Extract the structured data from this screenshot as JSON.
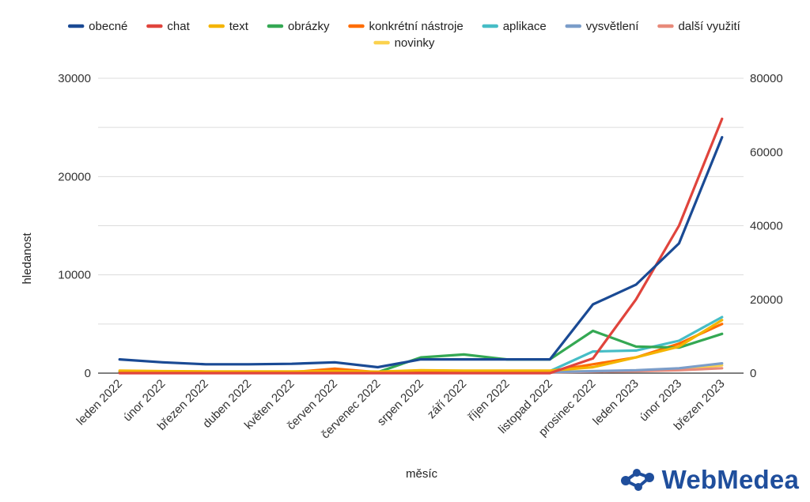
{
  "chart_data": {
    "type": "line",
    "title": "",
    "xlabel": "měsíc",
    "ylabel": "hledanost",
    "categories": [
      "leden 2022",
      "únor 2022",
      "březen 2022",
      "duben 2022",
      "květen 2022",
      "červen 2022",
      "červenec 2022",
      "srpen 2022",
      "září 2022",
      "říjen 2022",
      "listopad 2022",
      "prosinec 2022",
      "leden 2023",
      "únor 2023",
      "březen 2023"
    ],
    "ylim": [
      0,
      30000
    ],
    "yticks": [
      0,
      10000,
      20000,
      30000
    ],
    "y2lim": [
      0,
      80000
    ],
    "y2ticks": [
      0,
      20000,
      40000,
      60000,
      80000
    ],
    "legend_position": "top",
    "grid": true,
    "series": [
      {
        "name": "obecné",
        "color": "#1a4a94",
        "axis": "left",
        "values": [
          1400,
          1100,
          900,
          900,
          950,
          1100,
          600,
          1400,
          1400,
          1400,
          1400,
          7000,
          9000,
          13200,
          24000
        ]
      },
      {
        "name": "chat",
        "color": "#e0443c",
        "axis": "right",
        "values": [
          0,
          0,
          0,
          0,
          0,
          0,
          0,
          0,
          0,
          0,
          0,
          4000,
          20000,
          40000,
          69000
        ]
      },
      {
        "name": "text",
        "color": "#f4b400",
        "axis": "left",
        "values": [
          250,
          200,
          180,
          180,
          180,
          200,
          150,
          300,
          250,
          250,
          250,
          600,
          1600,
          2700,
          5400
        ]
      },
      {
        "name": "obrázky",
        "color": "#34a853",
        "axis": "left",
        "values": [
          100,
          100,
          100,
          100,
          100,
          100,
          100,
          1600,
          1900,
          1400,
          1400,
          4300,
          2700,
          2600,
          4000
        ]
      },
      {
        "name": "konkrétní nástroje",
        "color": "#ff6d01",
        "axis": "left",
        "values": [
          100,
          100,
          100,
          100,
          100,
          450,
          100,
          200,
          200,
          200,
          200,
          900,
          1600,
          3000,
          5000
        ]
      },
      {
        "name": "aplikace",
        "color": "#46bdc6",
        "axis": "left",
        "values": [
          100,
          100,
          100,
          100,
          100,
          100,
          100,
          200,
          200,
          200,
          200,
          2200,
          2300,
          3300,
          5700
        ]
      },
      {
        "name": "vysvětlení",
        "color": "#7b9dc9",
        "axis": "left",
        "values": [
          100,
          80,
          80,
          80,
          80,
          80,
          80,
          100,
          100,
          100,
          100,
          200,
          300,
          500,
          1000
        ]
      },
      {
        "name": "další využití",
        "color": "#e88a7a",
        "axis": "left",
        "values": [
          50,
          50,
          50,
          50,
          50,
          50,
          50,
          80,
          80,
          80,
          80,
          150,
          200,
          300,
          500
        ]
      },
      {
        "name": "novinky",
        "color": "#fbd24e",
        "axis": "left",
        "values": [
          100,
          80,
          80,
          80,
          80,
          80,
          80,
          150,
          150,
          150,
          150,
          200,
          250,
          400,
          800
        ]
      }
    ]
  },
  "brand": {
    "name": "WebMedea",
    "color": "#1f4e9c"
  }
}
